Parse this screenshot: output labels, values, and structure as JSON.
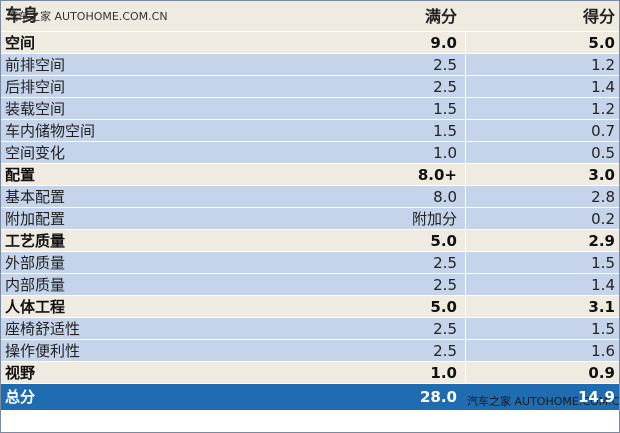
{
  "header": {
    "col_item": "车身",
    "col_full": "满分",
    "col_score": "得分",
    "watermark": "汽车之家  AUTOHOME.COM.CN"
  },
  "rows": [
    {
      "type": "cat",
      "name": "空间",
      "full": "9.0",
      "score": "5.0"
    },
    {
      "type": "sub",
      "name": "前排空间",
      "full": "2.5",
      "score": "1.2"
    },
    {
      "type": "sub",
      "name": "后排空间",
      "full": "2.5",
      "score": "1.4"
    },
    {
      "type": "sub",
      "name": "装载空间",
      "full": "1.5",
      "score": "1.2"
    },
    {
      "type": "sub",
      "name": "车内储物空间",
      "full": "1.5",
      "score": "0.7"
    },
    {
      "type": "sub",
      "name": "空间变化",
      "full": "1.0",
      "score": "0.5"
    },
    {
      "type": "cat",
      "name": "配置",
      "full": "8.0+",
      "score": "3.0"
    },
    {
      "type": "sub",
      "name": "基本配置",
      "full": "8.0",
      "score": "2.8"
    },
    {
      "type": "sub",
      "name": "附加配置",
      "full": "附加分",
      "score": "0.2"
    },
    {
      "type": "cat",
      "name": "工艺质量",
      "full": "5.0",
      "score": "2.9"
    },
    {
      "type": "sub",
      "name": "外部质量",
      "full": "2.5",
      "score": "1.5"
    },
    {
      "type": "sub",
      "name": "内部质量",
      "full": "2.5",
      "score": "1.4"
    },
    {
      "type": "cat",
      "name": "人体工程",
      "full": "5.0",
      "score": "3.1"
    },
    {
      "type": "sub",
      "name": "座椅舒适性",
      "full": "2.5",
      "score": "1.5"
    },
    {
      "type": "sub",
      "name": "操作便利性",
      "full": "2.5",
      "score": "1.6"
    },
    {
      "type": "cat",
      "name": "视野",
      "full": "1.0",
      "score": "0.9"
    }
  ],
  "footer": {
    "name": "总分",
    "full": "28.0",
    "score": "14.9",
    "watermark": "汽车之家  AUTOHOME.COM.CN"
  },
  "colors": {
    "category_bg": "#f0ebe0",
    "subitem_bg": "#c5d4ea",
    "footer_bg": "#1f6db0"
  }
}
